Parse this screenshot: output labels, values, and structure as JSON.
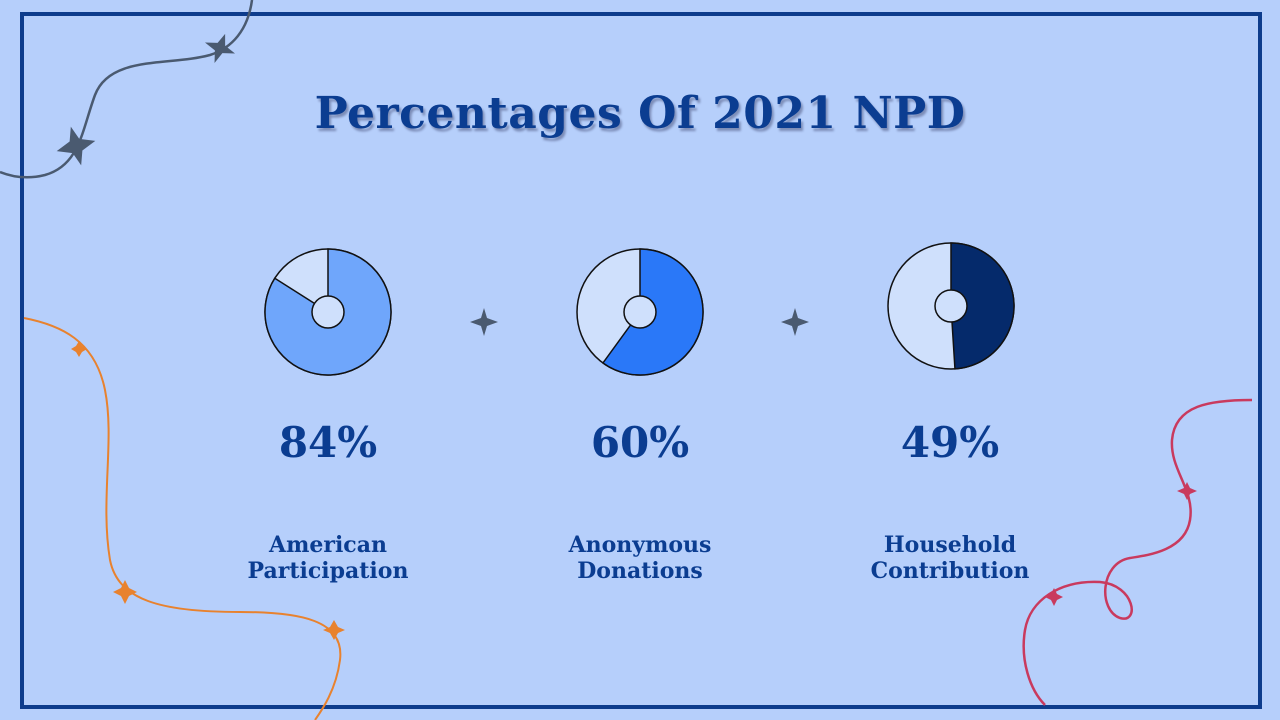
{
  "title": "Percentages Of 2021 NPD",
  "colors": {
    "background": "#b6cffb",
    "frame": "#0d3c8c",
    "title": "#0b3d91",
    "empty_slice": "#cfe0fc",
    "star": "#4a5a70",
    "orange_line": "#e8822e",
    "red_line": "#c93a5e"
  },
  "chart_data": {
    "type": "pie",
    "items": [
      {
        "value": 84,
        "label_text": "84%",
        "label_line1": "American",
        "label_line2": "Participation",
        "color": "#6fa6fb"
      },
      {
        "value": 60,
        "label_text": "60%",
        "label_line1": "Anonymous",
        "label_line2": "Donations",
        "color": "#2a78f8"
      },
      {
        "value": 49,
        "label_text": "49%",
        "label_line1": "Household",
        "label_line2": "Contribution",
        "color": "#052a6b"
      }
    ]
  }
}
